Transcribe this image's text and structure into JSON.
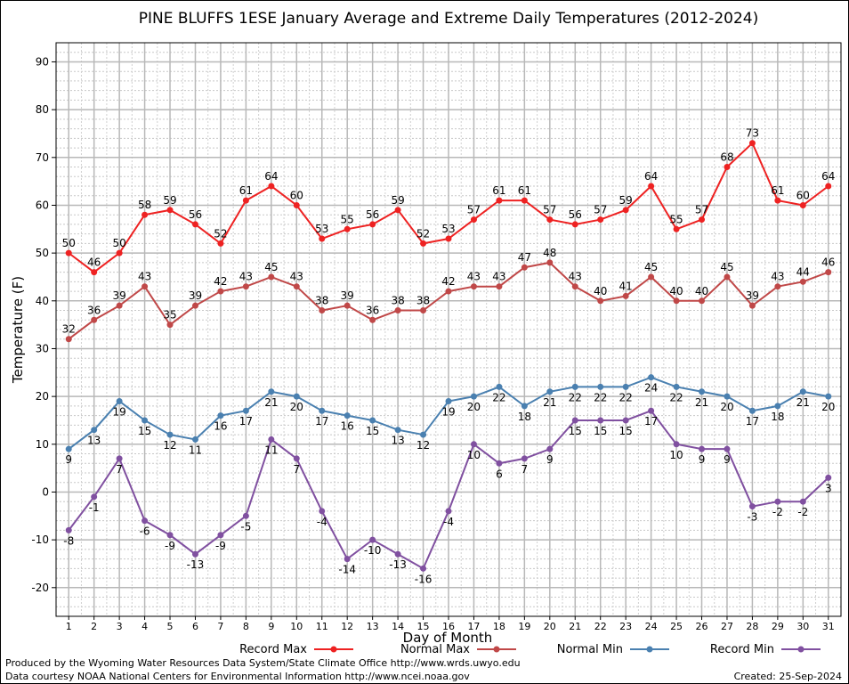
{
  "chart_data": {
    "type": "line",
    "title": "PINE BLUFFS 1ESE January Average and Extreme Daily Temperatures (2012-2024)",
    "xlabel": "Day of Month",
    "ylabel": "Temperature (F)",
    "ylim": [
      -26,
      94
    ],
    "yticks": [
      -20,
      -10,
      0,
      10,
      20,
      30,
      40,
      50,
      60,
      70,
      80,
      90
    ],
    "grid": true,
    "legend_position": "bottom",
    "x": [
      1,
      2,
      3,
      4,
      5,
      6,
      7,
      8,
      9,
      10,
      11,
      12,
      13,
      14,
      15,
      16,
      17,
      18,
      19,
      20,
      21,
      22,
      23,
      24,
      25,
      26,
      27,
      28,
      29,
      30,
      31
    ],
    "series": [
      {
        "name": "Record Max",
        "color": "#ee2222",
        "label_pos": "above",
        "values": [
          50,
          46,
          50,
          58,
          59,
          56,
          52,
          61,
          64,
          60,
          53,
          55,
          56,
          59,
          52,
          53,
          57,
          61,
          61,
          57,
          56,
          57,
          59,
          64,
          55,
          57,
          68,
          73,
          61,
          60,
          64
        ]
      },
      {
        "name": "Normal Max",
        "color": "#c04848",
        "label_pos": "above",
        "values": [
          32,
          36,
          39,
          43,
          35,
          39,
          42,
          43,
          45,
          43,
          38,
          39,
          36,
          38,
          38,
          42,
          43,
          43,
          47,
          48,
          43,
          40,
          41,
          45,
          40,
          40,
          45,
          39,
          43,
          44,
          46
        ]
      },
      {
        "name": "Normal Min",
        "color": "#4a80b0",
        "label_pos": "below",
        "values": [
          9,
          13,
          19,
          15,
          12,
          11,
          16,
          17,
          21,
          20,
          17,
          16,
          15,
          13,
          12,
          19,
          20,
          22,
          18,
          21,
          22,
          22,
          22,
          24,
          22,
          21,
          20,
          17,
          18,
          21,
          20
        ]
      },
      {
        "name": "Record Min",
        "color": "#8050a0",
        "label_pos": "below",
        "values": [
          -8,
          -1,
          7,
          -6,
          -9,
          -13,
          -9,
          -5,
          11,
          7,
          -4,
          -14,
          -10,
          -13,
          -16,
          -4,
          10,
          6,
          7,
          9,
          15,
          15,
          15,
          17,
          10,
          9,
          9,
          -3,
          -2,
          -2,
          3
        ]
      }
    ]
  },
  "footer": {
    "produced_by": "Produced by the Wyoming Water Resources Data System/State Climate Office http://www.wrds.uwyo.edu",
    "courtesy": "Data courtesy NOAA National Centers for Environmental Information http://www.ncei.noaa.gov",
    "created": "Created:  25-Sep-2024"
  }
}
